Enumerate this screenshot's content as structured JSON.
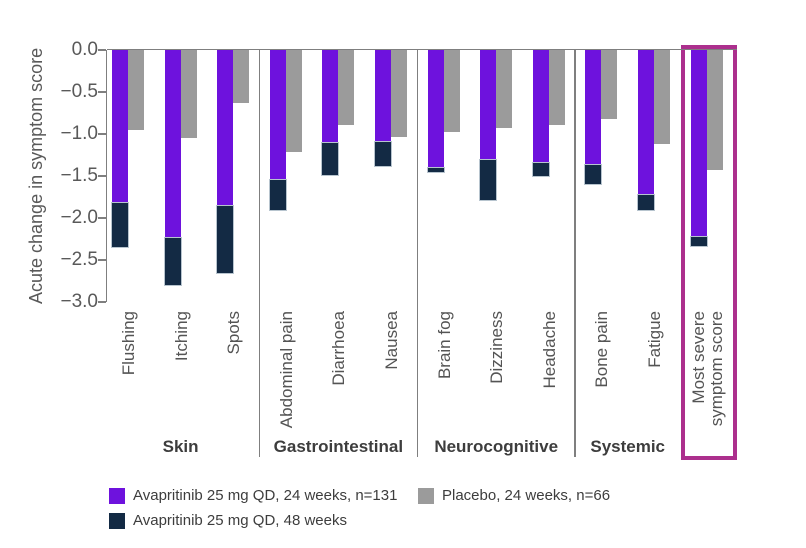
{
  "chart_data": {
    "type": "bar",
    "title": "",
    "ylabel": "Acute change in symptom score",
    "xlabel": "",
    "ylim": [
      0,
      -3.0
    ],
    "yticks": [
      "0.0",
      "−0.5",
      "−1.0",
      "−1.5",
      "−2.0",
      "−2.5",
      "−3.0"
    ],
    "grid": "off",
    "legend_position": "bottom",
    "bars_direction": "downward (negative change)",
    "series": [
      {
        "name": "Avapritinib 25 mg QD, 24 weeks, n=131",
        "color": "#6e12dd",
        "key": "avapritinib_24w"
      },
      {
        "name": "Avapritinib 25 mg QD, 48 weeks",
        "color": "#132a44",
        "key": "avapritinib_48w"
      },
      {
        "name": "Placebo, 24 weeks, n=66",
        "color": "#9b9b9b",
        "key": "placebo"
      }
    ],
    "groups": [
      {
        "label": "Skin",
        "items": [
          {
            "label": "Flushing",
            "avapritinib_24w": -1.82,
            "avapritinib_48w": -2.34,
            "placebo": -0.95
          },
          {
            "label": "Itching",
            "avapritinib_24w": -2.24,
            "avapritinib_48w": -2.8,
            "placebo": -1.05
          },
          {
            "label": "Spots",
            "avapritinib_24w": -1.86,
            "avapritinib_48w": -2.65,
            "placebo": -0.63
          }
        ]
      },
      {
        "label": "Gastrointestinal",
        "items": [
          {
            "label": "Abdominal pain",
            "avapritinib_24w": -1.55,
            "avapritinib_48w": -1.91,
            "placebo": -1.21
          },
          {
            "label": "Diarrhoea",
            "avapritinib_24w": -1.11,
            "avapritinib_48w": -1.49,
            "placebo": -0.89
          },
          {
            "label": "Nausea",
            "avapritinib_24w": -1.1,
            "avapritinib_48w": -1.38,
            "placebo": -1.04
          }
        ]
      },
      {
        "label": "Neurocognitive",
        "items": [
          {
            "label": "Brain fog",
            "avapritinib_24w": -1.4,
            "avapritinib_48w": -1.45,
            "placebo": -0.97
          },
          {
            "label": "Dizziness",
            "avapritinib_24w": -1.31,
            "avapritinib_48w": -1.79,
            "placebo": -0.93
          },
          {
            "label": "Headache",
            "avapritinib_24w": -1.35,
            "avapritinib_48w": -1.5,
            "placebo": -0.89
          }
        ]
      },
      {
        "label": "Systemic",
        "items": [
          {
            "label": "Bone pain",
            "avapritinib_24w": -1.37,
            "avapritinib_48w": -1.6,
            "placebo": -0.82
          },
          {
            "label": "Fatigue",
            "avapritinib_24w": -1.73,
            "avapritinib_48w": -1.9,
            "placebo": -1.12
          }
        ]
      },
      {
        "label": "",
        "boxed": true,
        "items": [
          {
            "label": "Most severe\nsymptom score",
            "avapritinib_24w": -2.23,
            "avapritinib_48w": -2.33,
            "placebo": -1.43
          }
        ]
      }
    ],
    "highlight_color": "#ac2f8d",
    "axis_color": "#7f7f7f",
    "text_color": "#595959"
  }
}
